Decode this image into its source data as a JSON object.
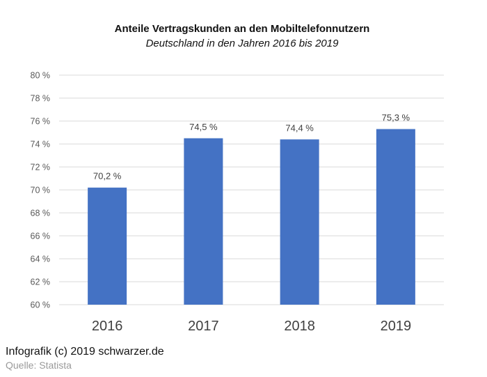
{
  "chart_data": {
    "type": "bar",
    "title": "Anteile Vertragskunden an den Mobiltelefonnutzern",
    "subtitle": "Deutschland in den Jahren 2016 bis 2019",
    "categories": [
      "2016",
      "2017",
      "2018",
      "2019"
    ],
    "values": [
      70.2,
      74.5,
      74.4,
      75.3
    ],
    "data_labels": [
      "70,2 %",
      "74,5 %",
      "74,4 %",
      "75,3 %"
    ],
    "yticks": [
      60,
      62,
      64,
      66,
      68,
      70,
      72,
      74,
      76,
      78,
      80
    ],
    "ytick_labels": [
      "60 %",
      "62 %",
      "64 %",
      "66 %",
      "68 %",
      "70 %",
      "72 %",
      "74 %",
      "76 %",
      "78 %",
      "80 %"
    ],
    "ylim": [
      60,
      80
    ],
    "xlabel": "",
    "ylabel": "",
    "grid": true,
    "bar_color": "#4472c4"
  },
  "footer": {
    "credit": "Infografik (c) 2019 schwarzer.de",
    "source": "Quelle: Statista"
  }
}
